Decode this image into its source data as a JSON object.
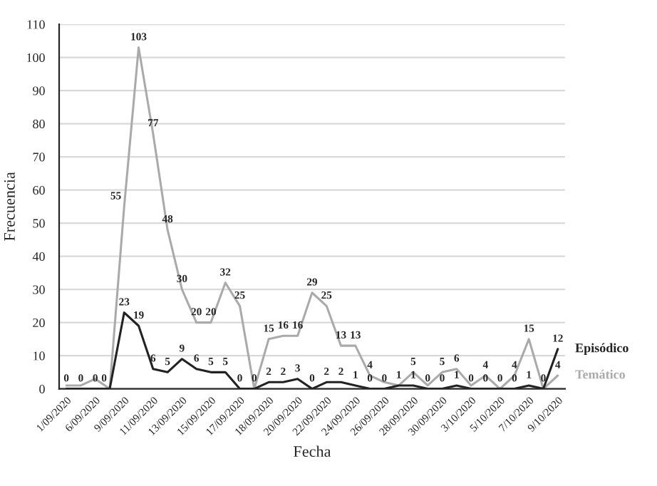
{
  "chart_data": {
    "type": "line",
    "xlabel": "Fecha",
    "ylabel": "Frecuencia",
    "categories": [
      "1/09/2020",
      null,
      "6/09/2020",
      null,
      "9/09/2020",
      null,
      "11/09/2020",
      null,
      "13/09/2020",
      null,
      "15/09/2020",
      null,
      "17/09/2020",
      null,
      "18/09/2020",
      null,
      "20/09/2020",
      null,
      "22/09/2020",
      null,
      "24/09/2020",
      null,
      "26/09/2020",
      null,
      "28/09/2020",
      null,
      "30/09/2020",
      null,
      "3/10/2020",
      null,
      "5/10/2020",
      null,
      "7/10/2020",
      null,
      "9/10/2020"
    ],
    "series": [
      {
        "name": "Temático",
        "color": "#aaaaaa",
        "values": [
          1,
          1,
          3,
          0,
          55,
          103,
          77,
          48,
          30,
          20,
          20,
          32,
          25,
          0,
          15,
          16,
          16,
          29,
          25,
          13,
          13,
          4,
          2,
          1,
          5,
          1,
          5,
          6,
          1,
          4,
          0,
          4,
          15,
          0,
          4
        ],
        "value_labels": [
          null,
          null,
          null,
          null,
          "55",
          "103",
          "77",
          "48",
          "30",
          "20",
          "20",
          "32",
          "25",
          null,
          "15",
          "16",
          "16",
          "29",
          "25",
          "13",
          "13",
          "4",
          null,
          null,
          "5",
          null,
          "5",
          "6",
          null,
          "4",
          null,
          "4",
          "15",
          null,
          "4"
        ]
      },
      {
        "name": "Episódico",
        "color": "#222222",
        "values": [
          0,
          0,
          0,
          0,
          23,
          19,
          6,
          5,
          9,
          6,
          5,
          5,
          0,
          0,
          2,
          2,
          3,
          0,
          2,
          2,
          1,
          0,
          0,
          1,
          1,
          0,
          0,
          1,
          0,
          0,
          0,
          0,
          1,
          0,
          12
        ],
        "value_labels": [
          "0",
          "0",
          "0",
          "0",
          "23",
          "19",
          "6",
          "5",
          "9",
          "6",
          "5",
          "5",
          "0",
          "0",
          "2",
          "2",
          "3",
          "0",
          "2",
          "2",
          "1",
          "0",
          "0",
          "1",
          "1",
          "0",
          "0",
          "1",
          "0",
          "0",
          "0",
          "0",
          "1",
          "0",
          "12"
        ]
      }
    ],
    "ylim": [
      0,
      110
    ],
    "yticks": [
      0,
      10,
      20,
      30,
      40,
      50,
      60,
      70,
      80,
      90,
      100,
      110
    ],
    "grid": "y",
    "marker": "none"
  }
}
